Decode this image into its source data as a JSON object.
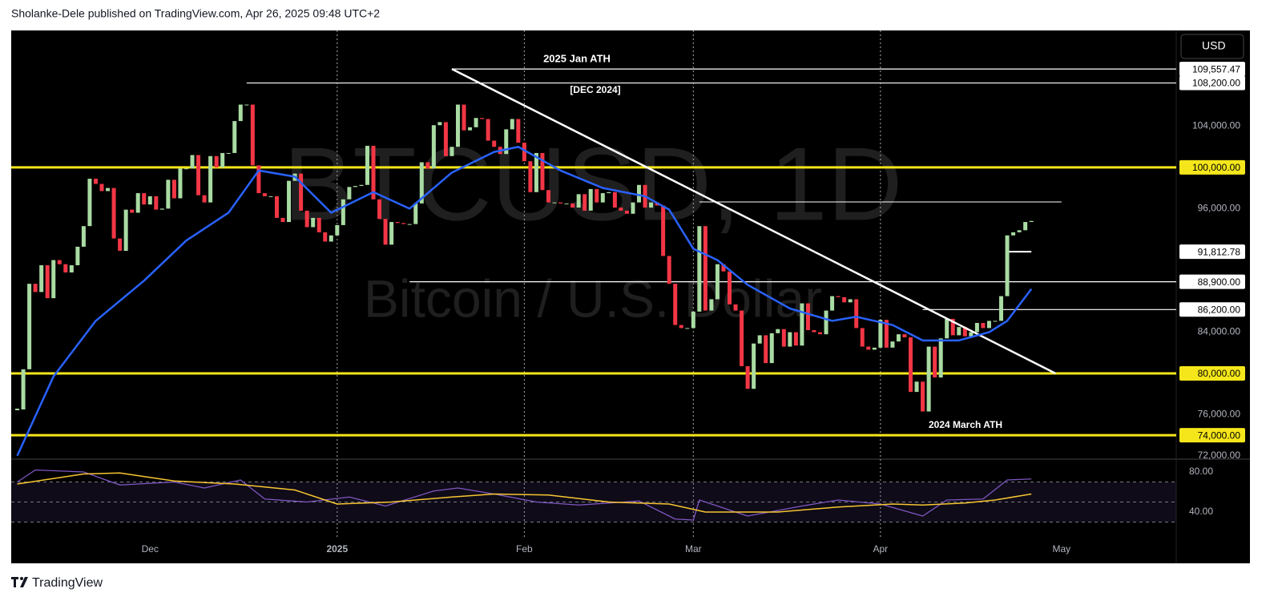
{
  "header": "Sholanke-Dele published on TradingView.com, Apr 26, 2025 09:48 UTC+2",
  "currency": "USD",
  "brand": "TradingView",
  "chart_data": {
    "type": "candlestick",
    "watermark": [
      "BTCUSD, 1D",
      "Bitcoin / U.S. Dollar"
    ],
    "annotations": [
      "2025 Jan ATH",
      "[DEC 2024]",
      "2024 March ATH"
    ],
    "x_start": "2024-11-09",
    "xlim": [
      "2024-11-08",
      "2025-05-20"
    ],
    "xticks": [
      {
        "value": "2024-12-01",
        "label": "Dec"
      },
      {
        "value": "2025-01-01",
        "label": "2025"
      },
      {
        "value": "2025-02-01",
        "label": "Feb"
      },
      {
        "value": "2025-03-01",
        "label": "Mar"
      },
      {
        "value": "2025-04-01",
        "label": "Apr"
      },
      {
        "value": "2025-05-01",
        "label": "May"
      }
    ],
    "vlines": [
      "2025-01-01",
      "2025-02-01",
      "2025-03-01",
      "2025-04-01"
    ],
    "ylim": [
      71750,
      113300
    ],
    "yticks": [
      {
        "value": 72000,
        "label": "72,000.00"
      },
      {
        "value": 76000,
        "label": "76,000.00"
      },
      {
        "value": 84000,
        "label": "84,000.00"
      },
      {
        "value": 96000,
        "label": "96,000.00"
      },
      {
        "value": 104000,
        "label": "104,000.00"
      }
    ],
    "series": [
      {
        "up_color": "#a9dba3",
        "down_color": "#f23645",
        "values": [
          76500,
          80400,
          88700,
          87900,
          90500,
          87300,
          91000,
          90600,
          89800,
          90500,
          92300,
          94300,
          98900,
          98400,
          97700,
          98000,
          93100,
          91900,
          95900,
          95600,
          97500,
          96400,
          97200,
          95900,
          96000,
          98800,
          97000,
          99900,
          99900,
          101200,
          97300,
          96600,
          101100,
          100000,
          101400,
          101400,
          104500,
          106100,
          106100,
          100200,
          97500,
          97200,
          97200,
          95100,
          94700,
          98700,
          99400,
          95800,
          94200,
          95100,
          93700,
          92800,
          93400,
          94400,
          96900,
          98100,
          98200,
          98300,
          102100,
          96900,
          95000,
          92500,
          94700,
          94600,
          94500,
          94500,
          96500,
          100500,
          99900,
          104100,
          104400,
          101100,
          102000,
          106100,
          103600,
          103900,
          104800,
          104700,
          102600,
          102000,
          101300,
          103700,
          104700,
          102400,
          100600,
          97600,
          101400,
          97800,
          96600,
          96600,
          96500,
          96500,
          96100,
          97400,
          95800,
          97900,
          96600,
          97500,
          97600,
          96100,
          95800,
          95500,
          96600,
          98300,
          96100,
          96600,
          96300,
          91400,
          88700,
          84700,
          84400,
          84400,
          86000,
          94300,
          86100,
          87200,
          90600,
          89900,
          86700,
          86100,
          80700,
          78500,
          82900,
          83700,
          81000,
          83900,
          84300,
          82600,
          84000,
          82700,
          86800,
          84200,
          84000,
          83800,
          86100,
          87500,
          87400,
          86900,
          87200,
          84400,
          82600,
          82300,
          82500,
          85200,
          82500,
          83100,
          83800,
          83500,
          78200,
          79200,
          76300,
          82600,
          79600,
          83400,
          85300,
          83700,
          84500,
          83600,
          84000,
          84900,
          84400,
          85100,
          85100,
          87500,
          93400,
          93700,
          93900,
          94700,
          94800
        ]
      }
    ],
    "ma": {
      "color": "#2962ff",
      "x": [
        "2024-11-09",
        "2024-11-15",
        "2024-11-22",
        "2024-11-30",
        "2024-12-07",
        "2024-12-14",
        "2024-12-19",
        "2024-12-25",
        "2024-12-31",
        "2025-01-07",
        "2025-01-13",
        "2025-01-20",
        "2025-01-27",
        "2025-01-31",
        "2025-02-07",
        "2025-02-14",
        "2025-02-21",
        "2025-02-25",
        "2025-03-01",
        "2025-03-05",
        "2025-03-10",
        "2025-03-17",
        "2025-03-24",
        "2025-03-28",
        "2025-04-03",
        "2025-04-08",
        "2025-04-14",
        "2025-04-19",
        "2025-04-22",
        "2025-04-26"
      ],
      "values": [
        72000,
        79700,
        85100,
        89000,
        92900,
        95600,
        99700,
        99100,
        95600,
        97600,
        96000,
        99500,
        101500,
        102000,
        99700,
        98000,
        97200,
        95900,
        92100,
        91000,
        88600,
        86300,
        85100,
        85500,
        84700,
        83200,
        83200,
        84000,
        85100,
        88200
      ]
    },
    "levels": [
      {
        "value": 109557.47,
        "label": "109,557.47",
        "color": "#ffffff",
        "from": "2025-01-20"
      },
      {
        "value": 108200,
        "label": "108,200.00",
        "color": "#ffffff",
        "from": "2024-12-17"
      },
      {
        "value": 100000,
        "label": "100,000.00",
        "color": "#f5e61b",
        "from": "2024-11-08"
      },
      {
        "value": 91812.78,
        "label": "91,812.78",
        "color": "#ffffff",
        "from": "2025-04-22",
        "to": "2025-04-26"
      },
      {
        "value": 88900,
        "label": "88,900.00",
        "color": "#ffffff",
        "from": "2025-01-13"
      },
      {
        "value": 86200,
        "label": "86,200.00",
        "color": "#ffffff",
        "from": "2025-04-08"
      },
      {
        "value": 80000,
        "label": "80,000.00",
        "color": "#f5e61b",
        "from": "2024-11-08"
      },
      {
        "value": 74000,
        "label": "74,000.00",
        "color": "#f5e61b",
        "from": "2024-11-08"
      }
    ],
    "segments": [
      {
        "value": 96650,
        "from": "2025-03-02",
        "to": "2025-05-01"
      }
    ],
    "trendline": {
      "x": [
        "2025-01-20",
        "2025-04-30"
      ],
      "values": [
        109557.47,
        80000
      ]
    },
    "rsi": {
      "ylim": [
        19.2,
        91.2
      ],
      "yticks": [
        {
          "value": 80,
          "label": "80.00"
        },
        {
          "value": 40,
          "label": "40.00"
        }
      ],
      "bands": [
        30,
        50,
        70
      ],
      "line": {
        "color": "#7e57c2",
        "x": [
          "2024-11-09",
          "2024-11-12",
          "2024-11-20",
          "2024-11-26",
          "2024-12-05",
          "2024-12-10",
          "2024-12-16",
          "2024-12-20",
          "2024-12-27",
          "2025-01-03",
          "2025-01-09",
          "2025-01-17",
          "2025-01-21",
          "2025-01-27",
          "2025-02-03",
          "2025-02-10",
          "2025-02-20",
          "2025-02-26",
          "2025-03-01",
          "2025-03-02",
          "2025-03-10",
          "2025-03-19",
          "2025-03-25",
          "2025-04-01",
          "2025-04-08",
          "2025-04-12",
          "2025-04-18",
          "2025-04-22",
          "2025-04-26"
        ],
        "values": [
          70,
          82,
          80,
          67,
          70,
          64,
          72,
          53,
          50,
          55,
          46,
          61,
          64,
          58,
          50,
          47,
          51,
          33,
          32,
          52,
          36,
          46,
          52,
          48,
          36,
          52,
          53,
          72,
          73
        ]
      },
      "ma": {
        "color": "#f7c531",
        "x": [
          "2024-11-09",
          "2024-11-20",
          "2024-11-26",
          "2024-12-05",
          "2024-12-15",
          "2024-12-25",
          "2025-01-01",
          "2025-01-10",
          "2025-01-20",
          "2025-01-27",
          "2025-02-05",
          "2025-02-15",
          "2025-02-25",
          "2025-03-03",
          "2025-03-15",
          "2025-03-25",
          "2025-04-03",
          "2025-04-08",
          "2025-04-15",
          "2025-04-20",
          "2025-04-26"
        ],
        "values": [
          68,
          78,
          79,
          71,
          68,
          62,
          48,
          50,
          55,
          58,
          57,
          50,
          48,
          40,
          40,
          45,
          48,
          47,
          49,
          52,
          58
        ]
      }
    }
  }
}
